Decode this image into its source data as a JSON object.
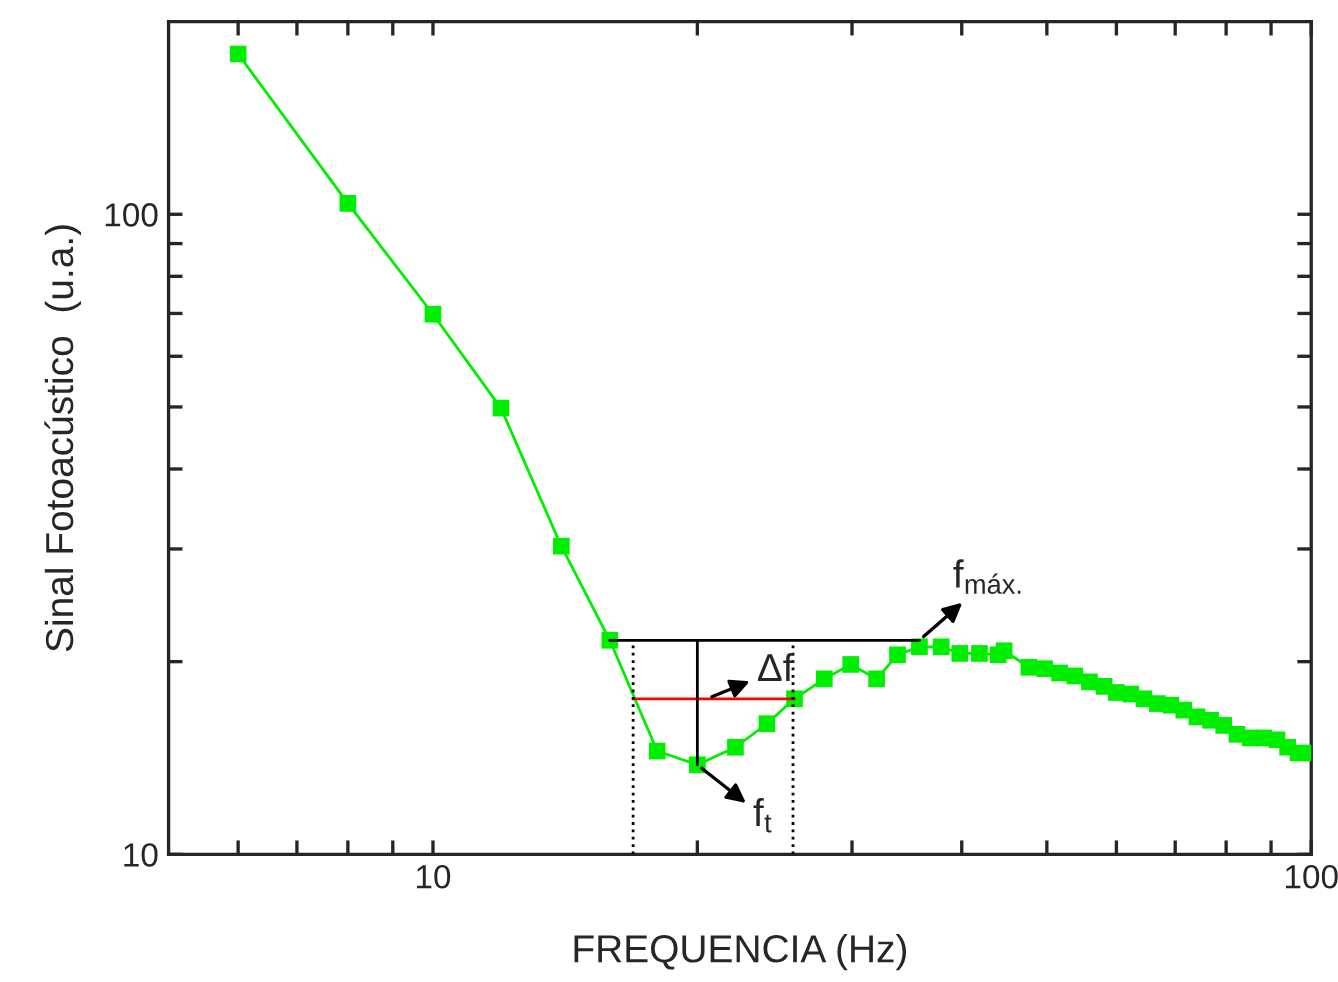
{
  "chart_data": {
    "type": "line",
    "xlabel": "FREQUENCIA (Hz)",
    "ylabel": "Sinal Fotoacústico  (u.a.)",
    "log": "xy",
    "xlim": [
      5,
      100
    ],
    "ylim": [
      10,
      200
    ],
    "xticks": [
      {
        "value": 6,
        "label": null
      },
      {
        "value": 7,
        "label": null
      },
      {
        "value": 8,
        "label": null
      },
      {
        "value": 9,
        "label": null
      },
      10,
      {
        "value": 20,
        "label": null
      },
      {
        "value": 30,
        "label": null
      },
      {
        "value": 40,
        "label": null
      },
      {
        "value": 50,
        "label": null
      },
      {
        "value": 60,
        "label": null
      },
      {
        "value": 70,
        "label": null
      },
      {
        "value": 80,
        "label": null
      },
      {
        "value": 90,
        "label": null
      },
      100
    ],
    "yticks": [
      10,
      {
        "value": 20,
        "label": null
      },
      {
        "value": 30,
        "label": null
      },
      {
        "value": 40,
        "label": null
      },
      {
        "value": 50,
        "label": null
      },
      {
        "value": 60,
        "label": null
      },
      {
        "value": 70,
        "label": null
      },
      {
        "value": 80,
        "label": null
      },
      {
        "value": 90,
        "label": null
      },
      100
    ],
    "grid": false,
    "legend": false,
    "series": [
      {
        "color": "#00ee00",
        "marker": "square",
        "line_style": "solid",
        "x": [
          6.0,
          8.0,
          10.0,
          11.95,
          14.0,
          15.9,
          18.0,
          20.0,
          22.1,
          24.0,
          25.8,
          27.9,
          29.9,
          32.0,
          33.8,
          35.8,
          37.9,
          39.8,
          41.9,
          44.0,
          44.7,
          47.7,
          49.7,
          51.7,
          53.8,
          55.9,
          58.1,
          60.0,
          62.3,
          64.5,
          66.8,
          69.2,
          71.6,
          74.1,
          76.8,
          79.5,
          82.3,
          85.2,
          88.3,
          91.4,
          94.0,
          96.6,
          100
        ],
        "values": [
          178,
          104,
          69.8,
          49.8,
          30.3,
          21.6,
          14.5,
          13.8,
          14.7,
          16.0,
          17.5,
          18.8,
          19.8,
          18.8,
          20.5,
          21.1,
          21.1,
          20.6,
          20.6,
          20.5,
          20.8,
          19.6,
          19.5,
          19.2,
          19.0,
          18.6,
          18.3,
          17.9,
          17.8,
          17.5,
          17.2,
          17.1,
          16.8,
          16.4,
          16.2,
          15.9,
          15.4,
          15.2,
          15.2,
          15.1,
          14.7,
          14.4,
          14.4
        ]
      },
      {
        "color": "#000000",
        "marker": "none",
        "line_style": "solid",
        "x": [
          15.9,
          35.8
        ],
        "values": [
          21.6,
          21.6
        ]
      },
      {
        "color": "#ff0000",
        "marker": "none",
        "line_style": "solid",
        "x": [
          16.9,
          25.8
        ],
        "values": [
          17.5,
          17.5
        ]
      },
      {
        "color": "#000000",
        "marker": "none",
        "line_style": "solid",
        "x": [
          20.0,
          20.0
        ],
        "values": [
          21.6,
          13.8
        ]
      },
      {
        "color": "#000000",
        "marker": "none",
        "line_style": "dotted",
        "x": [
          16.9,
          16.9
        ],
        "values": [
          10,
          21.6
        ]
      },
      {
        "color": "#000000",
        "marker": "none",
        "line_style": "dotted",
        "x": [
          25.7,
          25.7
        ],
        "values": [
          10,
          21.6
        ]
      }
    ],
    "annotations": [
      {
        "text": "f$_{máx.}$",
        "x": 35.8,
        "y": 21.6
      },
      {
        "text": "Δf",
        "x": 20.5,
        "y": 17.5
      },
      {
        "text": "f$_{t}$",
        "x": 20.0,
        "y": 13.8
      }
    ]
  }
}
